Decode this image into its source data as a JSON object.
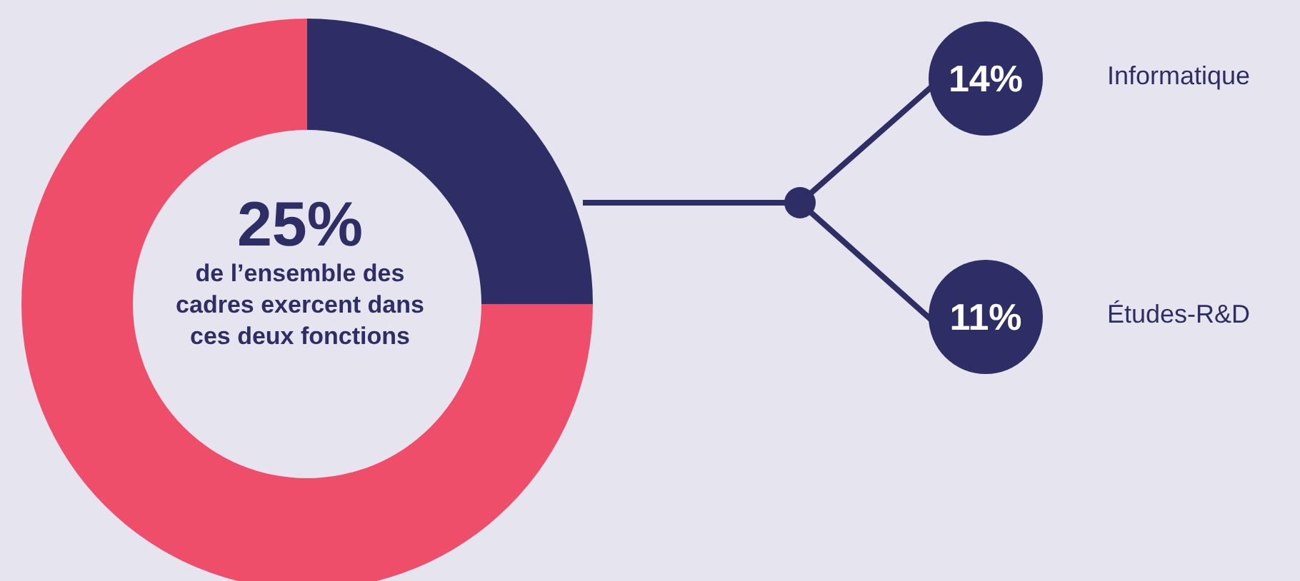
{
  "chart_data": {
    "type": "donut",
    "categories": [
      null,
      null
    ],
    "values": [
      25,
      75
    ],
    "colors": [
      "#2e2d66",
      "#ef4e6b"
    ],
    "annotations": [
      "25%",
      "de l’ensemble des cadres exercent dans ces deux fonctions",
      "14%",
      "Informatique",
      "11%",
      "Études-R&D"
    ]
  }
}
